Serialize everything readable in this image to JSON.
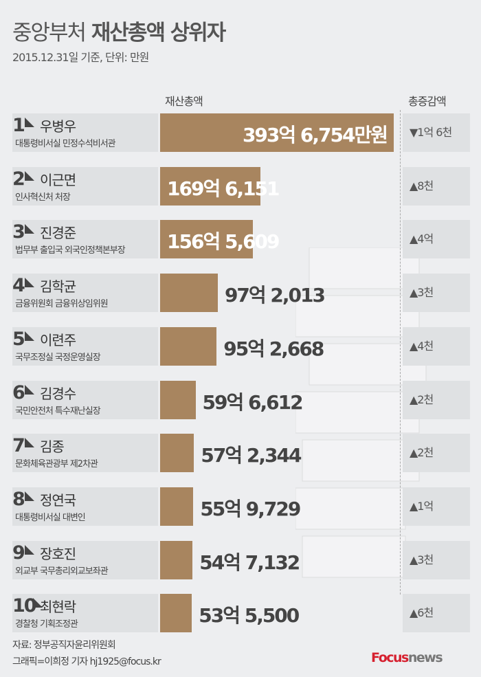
{
  "title_light": "중앙부처",
  "title_bold": "재산총액 상위자",
  "subtitle": "2015.12.31일 기준, 단위: 만원",
  "col_total": "재산총액",
  "col_change": "총증감액",
  "colors": {
    "bar": "#a8855f",
    "label_bg": "#dfe1e3",
    "background": "#edeef0"
  },
  "chart_data": {
    "type": "bar",
    "orientation": "horizontal",
    "unit": "만원",
    "rows": [
      {
        "rank": "1",
        "name": "우병우",
        "position": "대통령비서실 민정수석비서관",
        "value": 3936754,
        "label": "393억 6,754만원",
        "change": "▼1억 6천"
      },
      {
        "rank": "2",
        "name": "이근면",
        "position": "인사혁신처 처장",
        "value": 1696151,
        "label": "169억 6,151",
        "change": "▲8천"
      },
      {
        "rank": "3",
        "name": "진경준",
        "position": "법무부 출입국 외국인정책본부장",
        "value": 1565609,
        "label": "156억 5,609",
        "change": "▲4억"
      },
      {
        "rank": "4",
        "name": "김학균",
        "position": "금융위원회 금융위상임위원",
        "value": 972013,
        "label": "97억 2,013",
        "change": "▲3천"
      },
      {
        "rank": "5",
        "name": "이련주",
        "position": "국무조정실 국정운영실장",
        "value": 952668,
        "label": "95억  2,668",
        "change": "▲4천"
      },
      {
        "rank": "6",
        "name": "김경수",
        "position": "국민안전처 특수재난실장",
        "value": 596612,
        "label": "59억 6,612",
        "change": "▲2천"
      },
      {
        "rank": "7",
        "name": "김종",
        "position": "문화체육관광부 제2차관",
        "value": 572344,
        "label": "57억 2,344",
        "change": "▲2천"
      },
      {
        "rank": "8",
        "name": "정연국",
        "position": "대통령비서실 대변인",
        "value": 559729,
        "label": "55억 9,729",
        "change": "▲1억"
      },
      {
        "rank": "9",
        "name": "장호진",
        "position": "외교부 국무총리외교보좌관",
        "value": 547132,
        "label": "54억 7,132",
        "change": "▲3천"
      },
      {
        "rank": "10",
        "name": "최현락",
        "position": "경찰청 기획조정관",
        "value": 535500,
        "label": "53억 5,500",
        "change": "▲6천"
      }
    ]
  },
  "source": "자료: 정부공직자윤리위원회",
  "credit": "그래픽=이희정 기자 hj1925@focus.kr",
  "logo": {
    "focus": "Focus",
    "news": "news"
  }
}
